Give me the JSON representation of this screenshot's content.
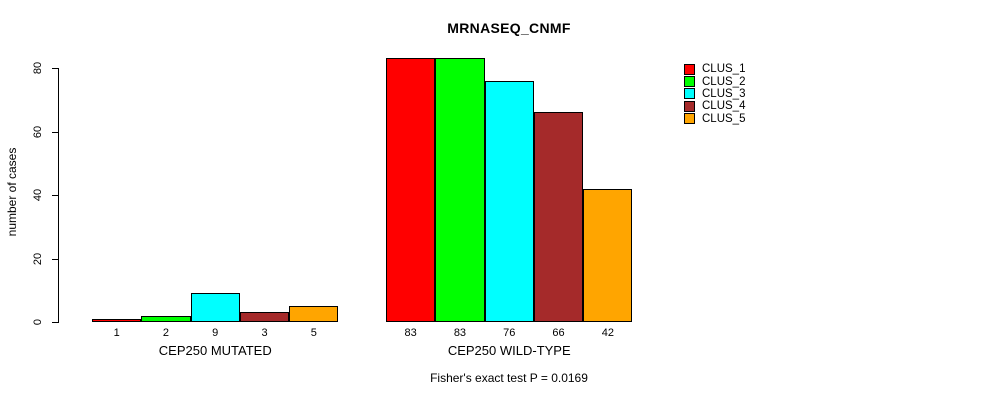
{
  "chart_data": {
    "type": "bar",
    "title": "MRNASEQ_CNMF",
    "ylabel": "number of cases",
    "xlabel": "",
    "yticks": [
      0,
      20,
      40,
      60,
      80
    ],
    "ylim": [
      0,
      83
    ],
    "grid": false,
    "legend_position": "right",
    "series": [
      "CLUS_1",
      "CLUS_2",
      "CLUS_3",
      "CLUS_4",
      "CLUS_5"
    ],
    "colors": [
      "#ff0000",
      "#00ff00",
      "#00ffff",
      "#a52a2a",
      "#ffa500"
    ],
    "groups": [
      {
        "label": "CEP250 MUTATED",
        "values": [
          1,
          2,
          9,
          3,
          5
        ]
      },
      {
        "label": "CEP250 WILD-TYPE",
        "values": [
          83,
          83,
          76,
          66,
          42
        ]
      }
    ],
    "caption": "Fisher's exact test P = 0.0169"
  }
}
